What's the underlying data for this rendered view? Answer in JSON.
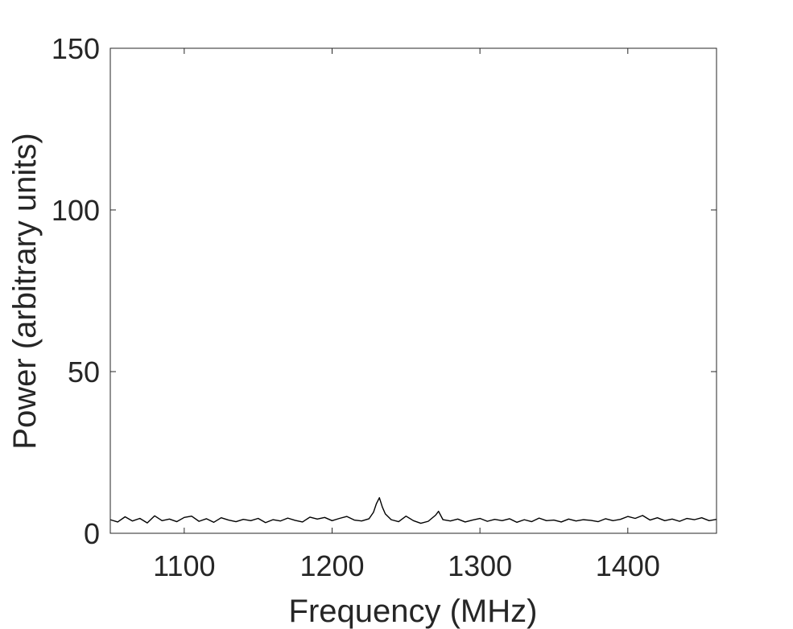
{
  "chart_data": {
    "type": "line",
    "xlabel": "Frequency (MHz)",
    "ylabel": "Power (arbitrary units)",
    "xlim": [
      1050,
      1460
    ],
    "ylim": [
      0,
      150
    ],
    "xticks": [
      1100,
      1200,
      1300,
      1400
    ],
    "yticks": [
      0,
      50,
      100,
      150
    ],
    "grid": false,
    "line_color": "#000000",
    "series": [
      {
        "x": [
          1050,
          1055,
          1060,
          1065,
          1070,
          1075,
          1080,
          1085,
          1090,
          1095,
          1100,
          1105,
          1110,
          1115,
          1120,
          1125,
          1130,
          1135,
          1140,
          1145,
          1150,
          1155,
          1160,
          1165,
          1170,
          1175,
          1180,
          1185,
          1190,
          1195,
          1200,
          1205,
          1210,
          1215,
          1220,
          1225,
          1228,
          1230,
          1232,
          1234,
          1236,
          1240,
          1245,
          1250,
          1255,
          1260,
          1265,
          1270,
          1272,
          1275,
          1280,
          1285,
          1290,
          1295,
          1300,
          1305,
          1310,
          1315,
          1320,
          1325,
          1330,
          1335,
          1340,
          1345,
          1350,
          1355,
          1360,
          1365,
          1370,
          1375,
          1380,
          1385,
          1390,
          1395,
          1400,
          1405,
          1410,
          1415,
          1420,
          1425,
          1430,
          1435,
          1440,
          1445,
          1450,
          1455,
          1460
        ],
        "values": [
          4.2,
          3.5,
          5.1,
          3.8,
          4.6,
          3.2,
          5.4,
          3.9,
          4.4,
          3.6,
          4.9,
          5.3,
          3.7,
          4.5,
          3.4,
          4.8,
          4.1,
          3.6,
          4.3,
          3.9,
          4.6,
          3.3,
          4.2,
          3.8,
          4.7,
          4.0,
          3.5,
          5.0,
          4.4,
          4.9,
          3.9,
          4.6,
          5.2,
          4.1,
          3.8,
          4.5,
          6.5,
          9.2,
          11.0,
          8.1,
          6.0,
          4.2,
          3.6,
          5.3,
          3.9,
          3.1,
          3.7,
          5.6,
          6.8,
          4.2,
          3.8,
          4.4,
          3.5,
          4.1,
          4.6,
          3.7,
          4.3,
          3.9,
          4.5,
          3.4,
          4.2,
          3.6,
          4.7,
          3.9,
          4.1,
          3.5,
          4.4,
          3.8,
          4.2,
          4.0,
          3.6,
          4.5,
          3.9,
          4.3,
          5.2,
          4.6,
          5.5,
          4.1,
          4.8,
          3.9,
          4.4,
          3.7,
          4.6,
          4.2,
          4.8,
          3.9,
          4.3
        ]
      }
    ]
  }
}
